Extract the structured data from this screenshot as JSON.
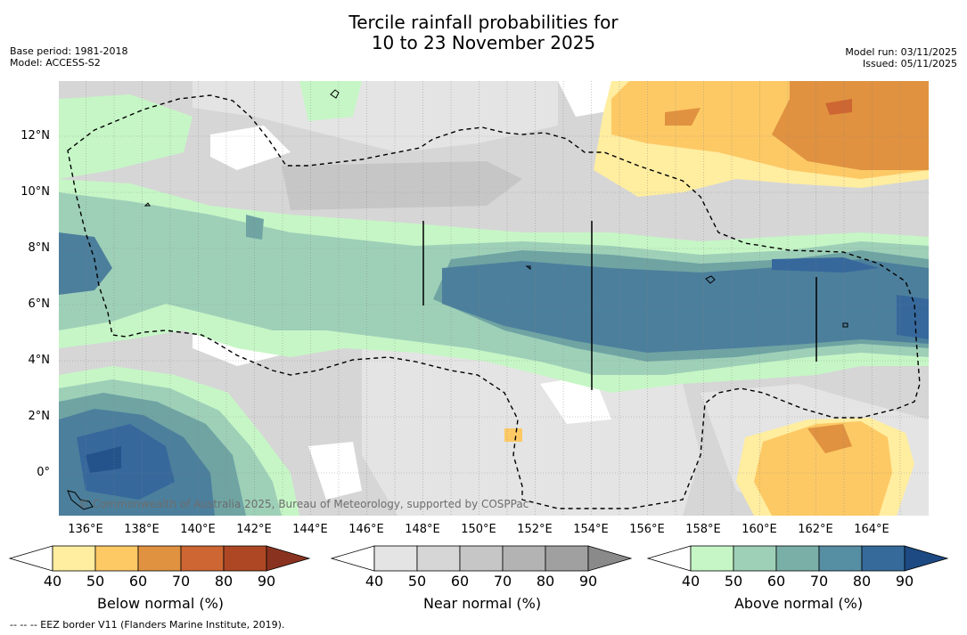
{
  "title_line1": "Tercile rainfall probabilities for",
  "title_line2": "10 to 23 November 2025",
  "base_period": "Base period: 1981-2018",
  "model": "Model: ACCESS-S2",
  "model_run": "Model run: 03/11/2025",
  "issued": "Issued: 05/11/2025",
  "copyright": "© Commonwealth of Australia 2025, Bureau of Meteorology, supported by COSPPac",
  "footnote": "-- -- -- EEZ border V11 (Flanders Marine Institute, 2019).",
  "lat_ticks": [
    "12°N",
    "10°N",
    "8°N",
    "6°N",
    "4°N",
    "2°N",
    "0°"
  ],
  "lon_ticks": [
    "136°E",
    "138°E",
    "140°E",
    "142°E",
    "144°E",
    "146°E",
    "148°E",
    "150°E",
    "152°E",
    "154°E",
    "156°E",
    "158°E",
    "160°E",
    "162°E",
    "164°E"
  ],
  "colorbars": [
    {
      "label": "Below normal (%)",
      "ticks": [
        "40",
        "50",
        "60",
        "70",
        "80",
        "90"
      ],
      "colors": [
        "#ffeda0",
        "#fdc965",
        "#e09240",
        "#cd6632",
        "#ae4824"
      ],
      "extend_color": "#8a3220"
    },
    {
      "label": "Near normal (%)",
      "ticks": [
        "40",
        "50",
        "60",
        "70",
        "80",
        "90"
      ],
      "colors": [
        "#e4e4e4",
        "#d6d6d6",
        "#c6c6c6",
        "#b3b3b3",
        "#a0a0a0"
      ],
      "extend_color": "#8a8a8a"
    },
    {
      "label": "Above normal (%)",
      "ticks": [
        "40",
        "50",
        "60",
        "70",
        "80",
        "90"
      ],
      "colors": [
        "#c6f6c6",
        "#9ed0b8",
        "#7aafa8",
        "#568ea4",
        "#356a9a"
      ],
      "extend_color": "#1d4a82"
    }
  ],
  "colors": {
    "below_50": "#ffeda0",
    "below_60": "#fdc965",
    "below_70": "#e09240",
    "below_80": "#cd6632",
    "near_40": "#e4e4e4",
    "near_50": "#d6d6d6",
    "near_60": "#c6c6c6",
    "above_40": "#c6f6c6",
    "above_50": "#9ed0b8",
    "above_60": "#6fa4a3",
    "above_70": "#4c7f9c",
    "above_80": "#36689c"
  }
}
